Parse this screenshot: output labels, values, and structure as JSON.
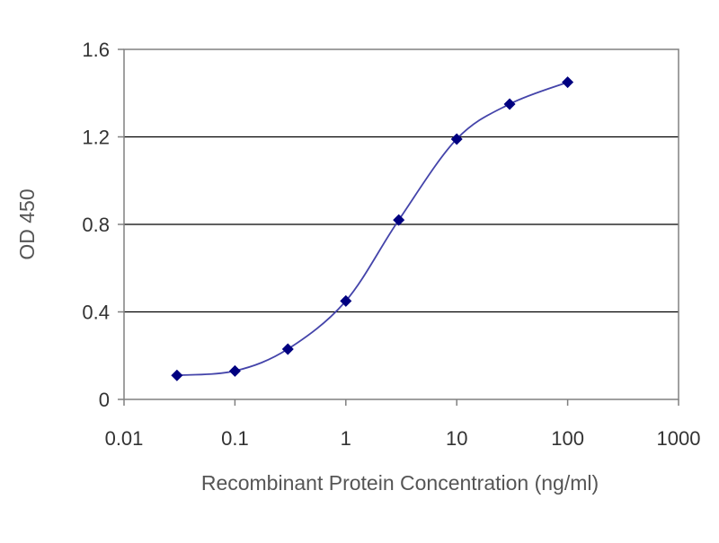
{
  "chart_data": {
    "type": "line",
    "title": "",
    "xlabel": "Recombinant Protein Concentration (ng/ml)",
    "ylabel": "OD 450",
    "x_scale": "log",
    "xlim": [
      0.01,
      1000
    ],
    "ylim": [
      0,
      1.6
    ],
    "x_ticks": [
      "0.01",
      "0.1",
      "1",
      "10",
      "100",
      "1000"
    ],
    "x_tick_values": [
      0.01,
      0.1,
      1,
      10,
      100,
      1000
    ],
    "y_ticks": [
      "0",
      "0.4",
      "0.8",
      "1.2",
      "1.6"
    ],
    "y_tick_values": [
      0,
      0.4,
      0.8,
      1.2,
      1.6
    ],
    "grid": "horizontal",
    "series": [
      {
        "color": "#000080",
        "line_color": "#4444aa",
        "marker": "diamond",
        "x": [
          0.03,
          0.1,
          0.3,
          1,
          3,
          10,
          30,
          100
        ],
        "y": [
          0.11,
          0.13,
          0.23,
          0.45,
          0.82,
          1.19,
          1.35,
          1.45
        ]
      }
    ]
  }
}
